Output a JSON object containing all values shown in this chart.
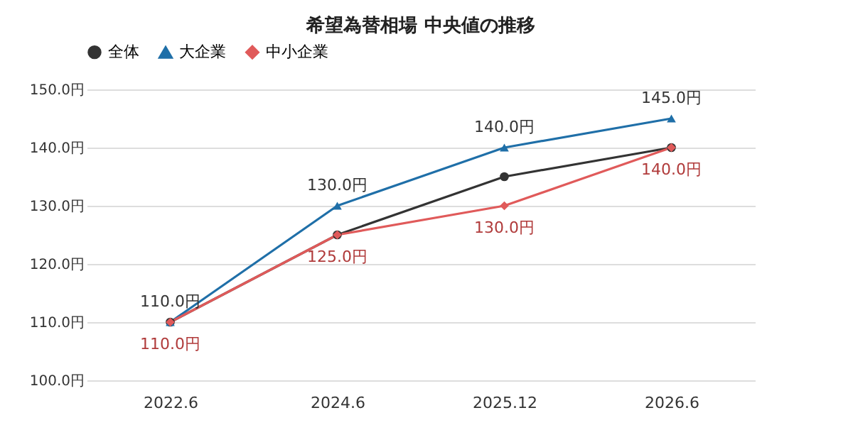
{
  "chart_data": {
    "type": "line",
    "title": "希望為替相場 中央値の推移",
    "categories": [
      "2022.6",
      "2024.6",
      "2025.12",
      "2026.6"
    ],
    "series": [
      {
        "name": "全体",
        "color": "#333333",
        "marker": "circle",
        "values": [
          110,
          125,
          135,
          140
        ]
      },
      {
        "name": "大企業",
        "color": "#1f6fa8",
        "marker": "triangle",
        "values": [
          110,
          130,
          140,
          145
        ],
        "value_labels": [
          "110.0円",
          "130.0円",
          "140.0円",
          "145.0円"
        ]
      },
      {
        "name": "中小企業",
        "color": "#e05a5a",
        "marker": "diamond",
        "values": [
          110,
          125,
          130,
          140
        ],
        "value_labels": [
          "110.0円",
          "125.0円",
          "130.0円",
          "140.0円"
        ]
      }
    ],
    "ylim": [
      100,
      150
    ],
    "yticks": [
      {
        "value": 100,
        "label": "100.0円"
      },
      {
        "value": 110,
        "label": "110.0円"
      },
      {
        "value": 120,
        "label": "120.0円"
      },
      {
        "value": 130,
        "label": "130.0円"
      },
      {
        "value": 140,
        "label": "140.0円"
      },
      {
        "value": 150,
        "label": "150.0円"
      }
    ],
    "grid": "y",
    "legend": "top",
    "line_style": "solid"
  }
}
